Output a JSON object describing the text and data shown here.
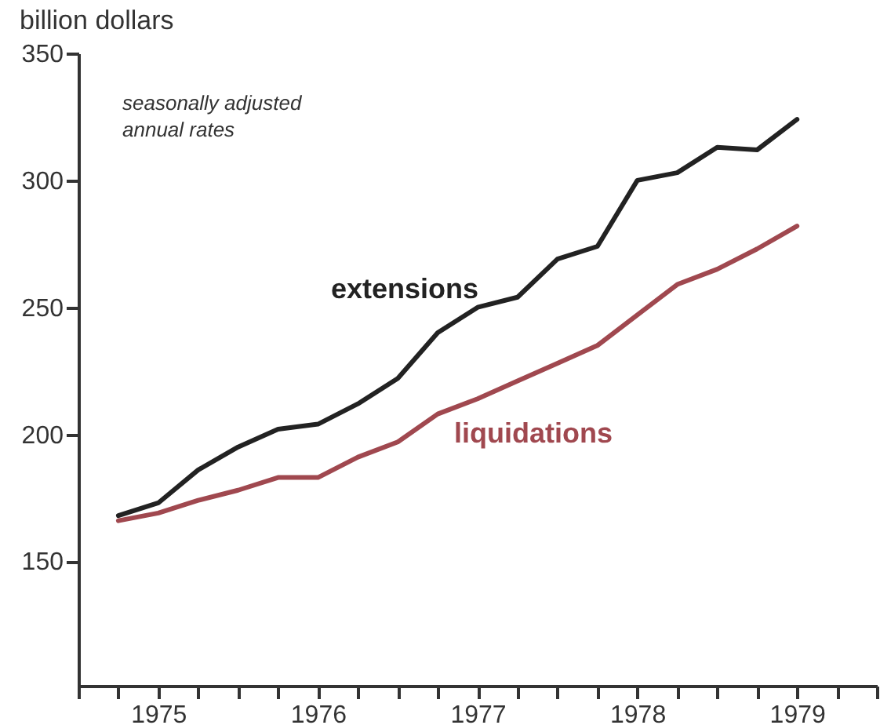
{
  "chart_data": {
    "type": "line",
    "ylabel": "billion dollars",
    "annotations": [
      "seasonally adjusted\nannual rates"
    ],
    "x": [
      1975.25,
      1975.5,
      1975.75,
      1976.0,
      1976.25,
      1976.5,
      1976.75,
      1977.0,
      1977.25,
      1977.5,
      1977.75,
      1978.0,
      1978.25,
      1978.5,
      1978.75,
      1979.0,
      1979.25,
      1979.5
    ],
    "series": [
      {
        "name": "extensions",
        "color": "#222222",
        "values": [
          168,
          173,
          186,
          195,
          202,
          204,
          212,
          222,
          240,
          250,
          254,
          269,
          274,
          300,
          303,
          313,
          312,
          324
        ]
      },
      {
        "name": "liquidations",
        "color": "#a0484f",
        "values": [
          166,
          169,
          174,
          178,
          183,
          183,
          191,
          197,
          208,
          214,
          221,
          228,
          235,
          247,
          259,
          265,
          273,
          282
        ]
      }
    ],
    "xlim": [
      1975,
      1980
    ],
    "xticks": [
      {
        "value": 1975,
        "label": null
      },
      {
        "value": 1975.25,
        "label": null
      },
      {
        "value": 1975.5,
        "label": "1975"
      },
      {
        "value": 1975.75,
        "label": null
      },
      {
        "value": 1976,
        "label": null
      },
      {
        "value": 1976.25,
        "label": null
      },
      {
        "value": 1976.5,
        "label": "1976"
      },
      {
        "value": 1976.75,
        "label": null
      },
      {
        "value": 1977,
        "label": null
      },
      {
        "value": 1977.25,
        "label": null
      },
      {
        "value": 1977.5,
        "label": "1977"
      },
      {
        "value": 1977.75,
        "label": null
      },
      {
        "value": 1978,
        "label": null
      },
      {
        "value": 1978.25,
        "label": null
      },
      {
        "value": 1978.5,
        "label": "1978"
      },
      {
        "value": 1978.75,
        "label": null
      },
      {
        "value": 1979,
        "label": null
      },
      {
        "value": 1979.25,
        "label": null
      },
      {
        "value": 1979.5,
        "label": "1979"
      },
      {
        "value": 1979.75,
        "label": null
      },
      {
        "value": 1980,
        "label": null
      }
    ],
    "ylim": [
      101,
      350
    ],
    "yticks": [
      150,
      200,
      250,
      300,
      350
    ],
    "grid": false,
    "legend": false,
    "marker": "none",
    "line_style": "solid"
  }
}
